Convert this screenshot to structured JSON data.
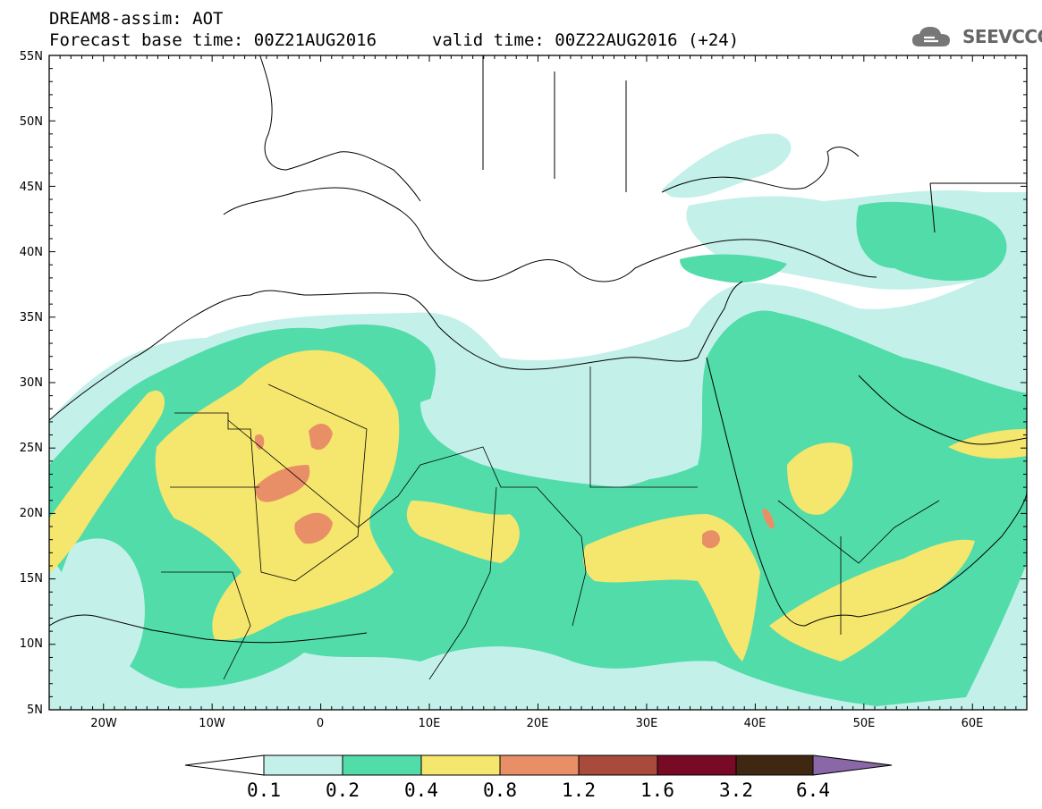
{
  "header": {
    "title": "DREAM8-assim: AOT",
    "forecast": "Forecast base time: 00Z21AUG2016",
    "valid": "valid time: 00Z22AUG2016 (+24)"
  },
  "logo": {
    "text": "SEEVCCC",
    "icon": "cloud-icon"
  },
  "map": {
    "lat_labels": [
      "55N",
      "50N",
      "45N",
      "40N",
      "35N",
      "30N",
      "25N",
      "20N",
      "15N",
      "10N",
      "5N"
    ],
    "lon_labels": [
      "20W",
      "10W",
      "0",
      "10E",
      "20E",
      "30E",
      "40E",
      "50E",
      "60E"
    ],
    "extent": {
      "lon": [
        -25,
        65
      ],
      "lat": [
        5,
        55
      ]
    }
  },
  "colorbar": {
    "labels": [
      "0.1",
      "0.2",
      "0.4",
      "0.8",
      "1.2",
      "1.6",
      "3.2",
      "6.4"
    ],
    "colors": [
      "#ffffff",
      "#c4f0ea",
      "#52dcaa",
      "#f5e66e",
      "#e98f67",
      "#a94b3c",
      "#780a25",
      "#3f2712",
      "#8a67a6"
    ]
  },
  "palette": {
    "light": "#c4f0ea",
    "green": "#52dcaa",
    "yellow": "#f5e66e",
    "orange": "#e98f67"
  }
}
